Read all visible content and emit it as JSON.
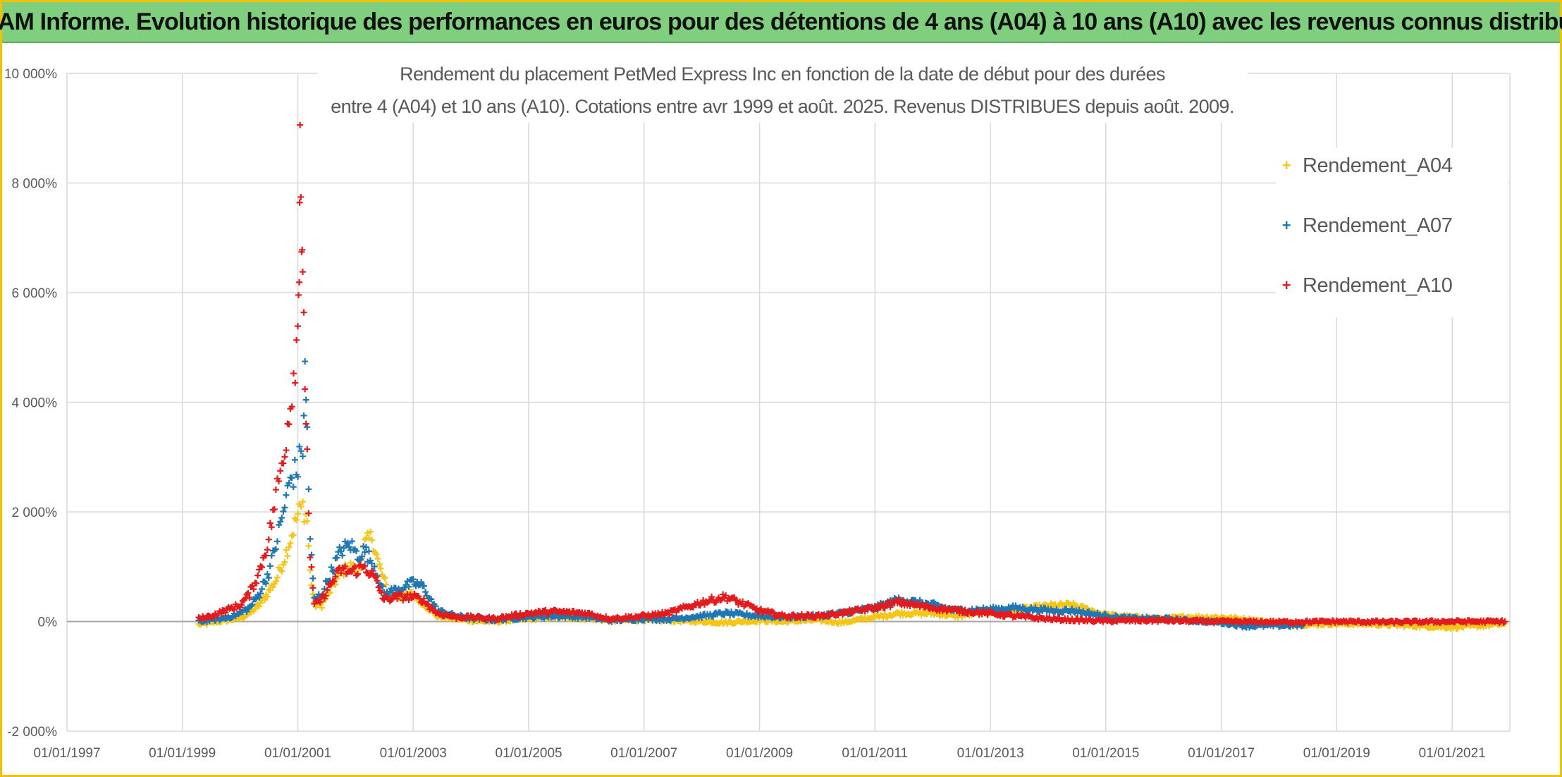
{
  "header": {
    "banner_title": "ADAM Informe. Evolution historique des performances en euros pour des détentions de 4 ans (A04) à 10 ans (A10) avec les revenus connus distribués"
  },
  "chart_data": {
    "type": "scatter",
    "title_lines": [
      "Rendement du placement PetMed Express Inc en fonction de la date de début pour des durées",
      "entre 4 (A04) et 10 ans (A10). Cotations entre avr 1999 et août. 2025. Revenus DISTRIBUES depuis août. 2009."
    ],
    "xlabel": "",
    "ylabel": "",
    "x_ticks": [
      "01/01/1997",
      "01/01/1999",
      "01/01/2001",
      "01/01/2003",
      "01/01/2005",
      "01/01/2007",
      "01/01/2009",
      "01/01/2011",
      "01/01/2013",
      "01/01/2015",
      "01/01/2017",
      "01/01/2019",
      "01/01/2021"
    ],
    "x_range": [
      "1997-01-01",
      "2022-01-01"
    ],
    "y_ticks": [
      "-2 000%",
      "0%",
      "2 000%",
      "4 000%",
      "6 000%",
      "8 000%",
      "10 000%"
    ],
    "y_range": [
      -2000,
      10000
    ],
    "grid": true,
    "legend_position": "top-right",
    "marker": "+",
    "series": [
      {
        "name": "Rendement_A04",
        "color": "#f5c518",
        "points": [
          [
            "1999-04-15",
            -50
          ],
          [
            "1999-07-01",
            -20
          ],
          [
            "1999-10-01",
            20
          ],
          [
            "2000-01-01",
            60
          ],
          [
            "2000-03-01",
            150
          ],
          [
            "2000-05-01",
            300
          ],
          [
            "2000-07-01",
            550
          ],
          [
            "2000-08-15",
            750
          ],
          [
            "2000-10-01",
            1100
          ],
          [
            "2000-11-15",
            1500
          ],
          [
            "2001-01-01",
            1950
          ],
          [
            "2001-02-01",
            2100
          ],
          [
            "2001-03-01",
            1850
          ],
          [
            "2001-03-20",
            900
          ],
          [
            "2001-04-15",
            300
          ],
          [
            "2001-06-01",
            300
          ],
          [
            "2001-08-01",
            600
          ],
          [
            "2001-10-01",
            900
          ],
          [
            "2001-12-01",
            1000
          ],
          [
            "2002-01-15",
            900
          ],
          [
            "2002-03-01",
            1400
          ],
          [
            "2002-04-15",
            1550
          ],
          [
            "2002-06-01",
            1000
          ],
          [
            "2002-08-01",
            500
          ],
          [
            "2002-10-01",
            450
          ],
          [
            "2003-01-01",
            500
          ],
          [
            "2003-03-01",
            350
          ],
          [
            "2003-06-01",
            100
          ],
          [
            "2003-10-01",
            50
          ],
          [
            "2004-01-01",
            20
          ],
          [
            "2004-06-01",
            0
          ],
          [
            "2005-01-01",
            50
          ],
          [
            "2005-06-01",
            80
          ],
          [
            "2006-01-01",
            60
          ],
          [
            "2006-06-01",
            20
          ],
          [
            "2007-01-01",
            30
          ],
          [
            "2007-06-01",
            20
          ],
          [
            "2008-01-01",
            0
          ],
          [
            "2008-06-01",
            -20
          ],
          [
            "2009-01-01",
            20
          ],
          [
            "2009-06-01",
            0
          ],
          [
            "2010-01-01",
            30
          ],
          [
            "2010-06-01",
            -20
          ],
          [
            "2011-01-01",
            80
          ],
          [
            "2011-06-01",
            150
          ],
          [
            "2012-01-01",
            150
          ],
          [
            "2012-06-01",
            100
          ],
          [
            "2013-01-01",
            180
          ],
          [
            "2013-06-01",
            200
          ],
          [
            "2014-01-01",
            280
          ],
          [
            "2014-06-01",
            300
          ],
          [
            "2015-01-01",
            120
          ],
          [
            "2015-06-01",
            80
          ],
          [
            "2016-01-01",
            50
          ],
          [
            "2016-06-01",
            80
          ],
          [
            "2017-01-01",
            70
          ],
          [
            "2017-06-01",
            40
          ],
          [
            "2018-01-01",
            -30
          ],
          [
            "2018-06-01",
            -50
          ],
          [
            "2019-01-01",
            -40
          ],
          [
            "2019-06-01",
            -40
          ],
          [
            "2020-01-01",
            -60
          ],
          [
            "2020-06-01",
            -80
          ],
          [
            "2021-01-01",
            -100
          ],
          [
            "2021-06-01",
            -80
          ],
          [
            "2021-12-01",
            -40
          ]
        ]
      },
      {
        "name": "Rendement_A07",
        "color": "#1f77b4",
        "points": [
          [
            "1999-04-15",
            0
          ],
          [
            "1999-07-01",
            30
          ],
          [
            "1999-10-01",
            60
          ],
          [
            "2000-01-01",
            150
          ],
          [
            "2000-03-01",
            250
          ],
          [
            "2000-05-01",
            500
          ],
          [
            "2000-07-01",
            900
          ],
          [
            "2000-08-15",
            1400
          ],
          [
            "2000-10-01",
            2000
          ],
          [
            "2000-11-15",
            2600
          ],
          [
            "2001-01-01",
            2800
          ],
          [
            "2001-02-01",
            3200
          ],
          [
            "2001-02-15",
            4500
          ],
          [
            "2001-03-01",
            3500
          ],
          [
            "2001-03-20",
            1500
          ],
          [
            "2001-04-15",
            400
          ],
          [
            "2001-06-01",
            500
          ],
          [
            "2001-08-01",
            900
          ],
          [
            "2001-10-01",
            1300
          ],
          [
            "2001-12-01",
            1400
          ],
          [
            "2002-01-15",
            1200
          ],
          [
            "2002-03-01",
            1300
          ],
          [
            "2002-05-01",
            1000
          ],
          [
            "2002-07-01",
            500
          ],
          [
            "2002-10-01",
            600
          ],
          [
            "2003-01-01",
            700
          ],
          [
            "2003-03-01",
            650
          ],
          [
            "2003-06-01",
            200
          ],
          [
            "2003-10-01",
            100
          ],
          [
            "2004-01-01",
            60
          ],
          [
            "2004-06-01",
            30
          ],
          [
            "2005-01-01",
            80
          ],
          [
            "2005-06-01",
            100
          ],
          [
            "2006-01-01",
            80
          ],
          [
            "2006-06-01",
            20
          ],
          [
            "2007-01-01",
            50
          ],
          [
            "2007-06-01",
            40
          ],
          [
            "2008-01-01",
            100
          ],
          [
            "2008-06-01",
            150
          ],
          [
            "2009-01-01",
            100
          ],
          [
            "2009-06-01",
            80
          ],
          [
            "2010-01-01",
            100
          ],
          [
            "2010-06-01",
            150
          ],
          [
            "2011-01-01",
            250
          ],
          [
            "2011-06-01",
            400
          ],
          [
            "2012-01-01",
            300
          ],
          [
            "2012-06-01",
            200
          ],
          [
            "2013-01-01",
            220
          ],
          [
            "2013-06-01",
            250
          ],
          [
            "2014-01-01",
            200
          ],
          [
            "2014-06-01",
            200
          ],
          [
            "2015-01-01",
            100
          ],
          [
            "2015-06-01",
            60
          ],
          [
            "2016-01-01",
            50
          ],
          [
            "2016-06-01",
            20
          ],
          [
            "2017-01-01",
            -20
          ],
          [
            "2017-06-01",
            -80
          ],
          [
            "2018-01-01",
            -70
          ],
          [
            "2018-06-01",
            -70
          ]
        ]
      },
      {
        "name": "Rendement_A10",
        "color": "#e41a1c",
        "points": [
          [
            "1999-04-15",
            50
          ],
          [
            "1999-07-01",
            100
          ],
          [
            "1999-10-01",
            200
          ],
          [
            "2000-01-01",
            300
          ],
          [
            "2000-03-01",
            500
          ],
          [
            "2000-05-01",
            900
          ],
          [
            "2000-07-01",
            1500
          ],
          [
            "2000-08-15",
            2300
          ],
          [
            "2000-10-01",
            3000
          ],
          [
            "2000-11-15",
            4000
          ],
          [
            "2000-12-15",
            4800
          ],
          [
            "2001-01-01",
            5300
          ],
          [
            "2001-01-10",
            6800
          ],
          [
            "2001-01-15",
            9100
          ],
          [
            "2001-01-25",
            7000
          ],
          [
            "2001-02-01",
            5900
          ],
          [
            "2001-02-15",
            4500
          ],
          [
            "2001-03-01",
            3000
          ],
          [
            "2001-03-20",
            1200
          ],
          [
            "2001-04-15",
            300
          ],
          [
            "2001-06-01",
            400
          ],
          [
            "2001-08-01",
            700
          ],
          [
            "2001-10-01",
            950
          ],
          [
            "2001-12-01",
            900
          ],
          [
            "2002-01-15",
            950
          ],
          [
            "2002-03-01",
            1000
          ],
          [
            "2002-05-01",
            800
          ],
          [
            "2002-07-01",
            400
          ],
          [
            "2002-10-01",
            450
          ],
          [
            "2003-01-01",
            450
          ],
          [
            "2003-03-01",
            400
          ],
          [
            "2003-06-01",
            150
          ],
          [
            "2003-10-01",
            80
          ],
          [
            "2004-01-01",
            80
          ],
          [
            "2004-06-01",
            50
          ],
          [
            "2005-01-01",
            150
          ],
          [
            "2005-06-01",
            180
          ],
          [
            "2006-01-01",
            150
          ],
          [
            "2006-06-01",
            50
          ],
          [
            "2007-01-01",
            100
          ],
          [
            "2007-06-01",
            150
          ],
          [
            "2008-01-01",
            350
          ],
          [
            "2008-06-01",
            450
          ],
          [
            "2009-01-01",
            200
          ],
          [
            "2009-06-01",
            100
          ],
          [
            "2010-01-01",
            100
          ],
          [
            "2010-06-01",
            150
          ],
          [
            "2011-01-01",
            250
          ],
          [
            "2011-06-01",
            350
          ],
          [
            "2012-01-01",
            250
          ],
          [
            "2012-06-01",
            200
          ],
          [
            "2013-01-01",
            150
          ],
          [
            "2013-06-01",
            100
          ],
          [
            "2014-01-01",
            50
          ],
          [
            "2014-06-01",
            30
          ],
          [
            "2015-01-01",
            10
          ],
          [
            "2015-06-01",
            20
          ],
          [
            "2016-01-01",
            20
          ],
          [
            "2016-06-01",
            10
          ],
          [
            "2017-01-01",
            0
          ],
          [
            "2018-01-01",
            -10
          ],
          [
            "2019-01-01",
            0
          ],
          [
            "2020-01-01",
            -10
          ],
          [
            "2021-01-01",
            0
          ],
          [
            "2021-12-01",
            0
          ]
        ]
      }
    ]
  }
}
